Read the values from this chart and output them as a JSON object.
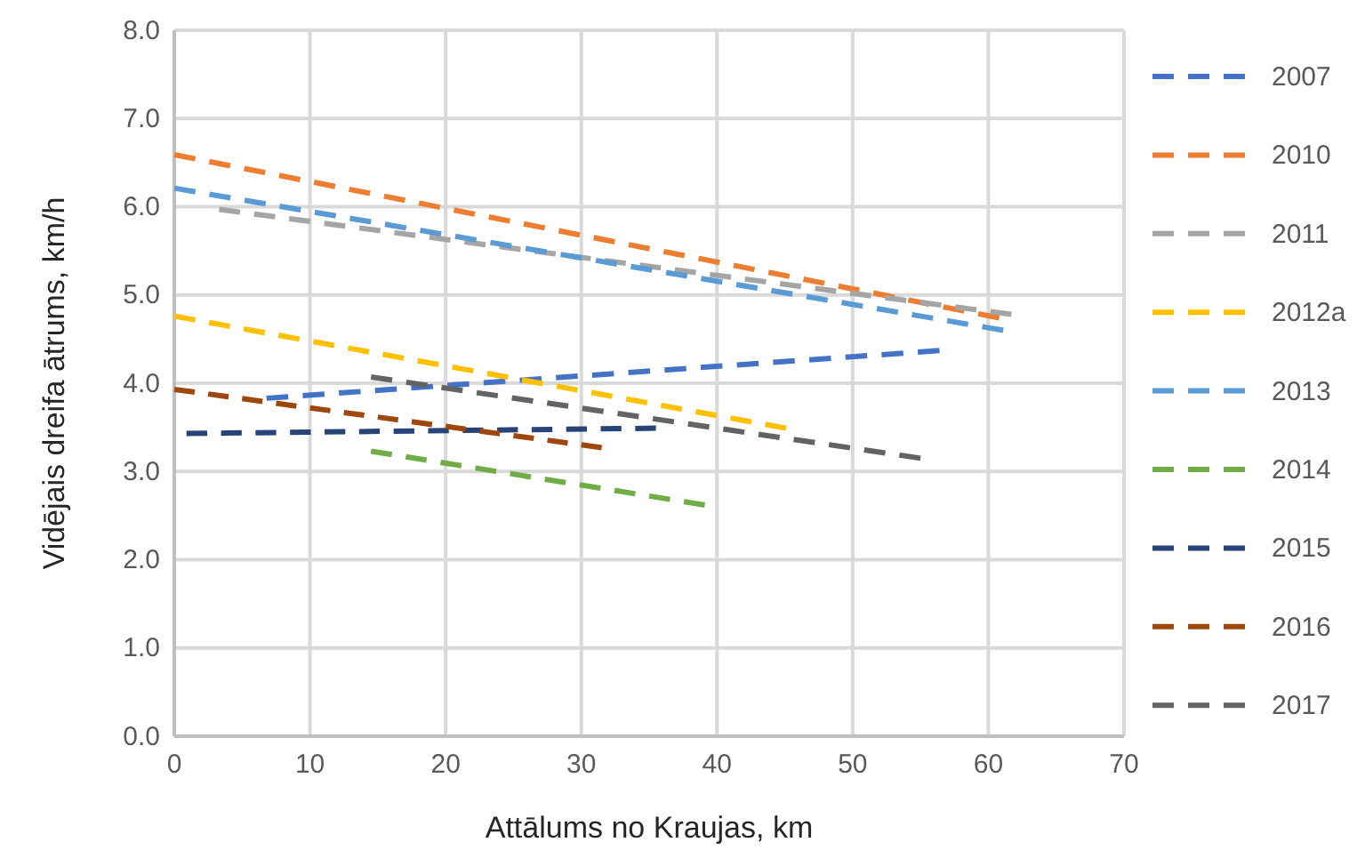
{
  "chart_data": {
    "type": "line",
    "xlabel": "Attālums no Kraujas, km",
    "ylabel": "Vidējais dreifa ātrums, km/h",
    "xlim": [
      0,
      70
    ],
    "xticks": [
      0,
      10,
      20,
      30,
      40,
      50,
      60,
      70
    ],
    "ylim": [
      0,
      8
    ],
    "yticks": [
      {
        "value": 0,
        "label": "0.0"
      },
      {
        "value": 1,
        "label": "1.0"
      },
      {
        "value": 2,
        "label": "2.0"
      },
      {
        "value": 3,
        "label": "3.0"
      },
      {
        "value": 4,
        "label": "4.0"
      },
      {
        "value": 5,
        "label": "5.0"
      },
      {
        "value": 6,
        "label": "6.0"
      },
      {
        "value": 7,
        "label": "7.0"
      },
      {
        "value": 8,
        "label": "8.0"
      }
    ],
    "grid": true,
    "legend": "right",
    "line_style": "dashed",
    "marker": "none",
    "series": [
      {
        "name": "2007",
        "color": "#4472c4",
        "x": [
          6.8,
          56.4
        ],
        "values": [
          3.83,
          4.37
        ]
      },
      {
        "name": "2010",
        "color": "#ed7d31",
        "x": [
          0,
          60.8
        ],
        "values": [
          6.59,
          4.74
        ]
      },
      {
        "name": "2011",
        "color": "#a5a5a5",
        "x": [
          3.3,
          61.7
        ],
        "values": [
          5.97,
          4.78
        ]
      },
      {
        "name": "2012a",
        "color": "#ffc000",
        "x": [
          0,
          45.1
        ],
        "values": [
          4.76,
          3.49
        ]
      },
      {
        "name": "2013",
        "color": "#5b9bd5",
        "x": [
          0,
          61.1
        ],
        "values": [
          6.21,
          4.6
        ]
      },
      {
        "name": "2014",
        "color": "#70ad47",
        "x": [
          14.5,
          39.1
        ],
        "values": [
          3.23,
          2.62
        ]
      },
      {
        "name": "2015",
        "color": "#264478",
        "x": [
          0.9,
          35.5
        ],
        "values": [
          3.43,
          3.49
        ]
      },
      {
        "name": "2016",
        "color": "#9e480e",
        "x": [
          0,
          31.5
        ],
        "values": [
          3.93,
          3.27
        ]
      },
      {
        "name": "2017",
        "color": "#636363",
        "x": [
          14.5,
          55.0
        ],
        "values": [
          4.07,
          3.15
        ]
      }
    ]
  }
}
